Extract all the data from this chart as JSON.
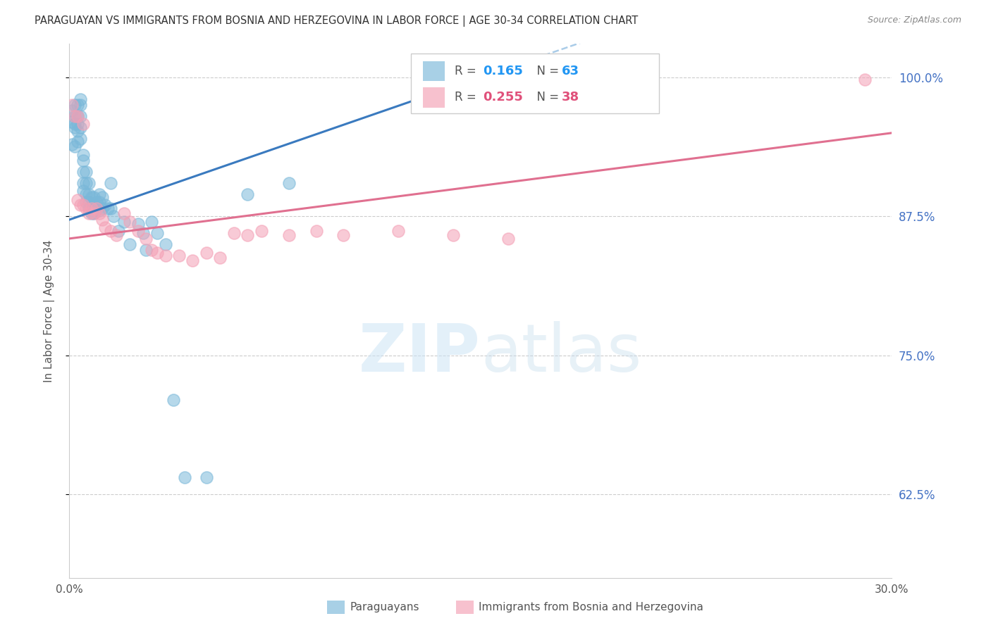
{
  "title": "PARAGUAYAN VS IMMIGRANTS FROM BOSNIA AND HERZEGOVINA IN LABOR FORCE | AGE 30-34 CORRELATION CHART",
  "source": "Source: ZipAtlas.com",
  "ylabel": "In Labor Force | Age 30-34",
  "x_min": 0.0,
  "x_max": 0.3,
  "y_min": 0.55,
  "y_max": 1.03,
  "yticks": [
    0.625,
    0.75,
    0.875,
    1.0
  ],
  "ytick_labels": [
    "62.5%",
    "75.0%",
    "87.5%",
    "100.0%"
  ],
  "xticks": [
    0.0,
    0.05,
    0.1,
    0.15,
    0.2,
    0.25,
    0.3
  ],
  "xtick_labels": [
    "0.0%",
    "",
    "",
    "",
    "",
    "",
    "30.0%"
  ],
  "legend_r1": "0.165",
  "legend_n1": "63",
  "legend_r2": "0.255",
  "legend_n2": "38",
  "blue_color": "#7ab8d9",
  "pink_color": "#f4a0b5",
  "blue_line_color": "#3a7abf",
  "pink_line_color": "#e07090",
  "blue_dash_color": "#aacce8",
  "para_x": [
    0.001,
    0.001,
    0.001,
    0.002,
    0.002,
    0.002,
    0.002,
    0.002,
    0.003,
    0.003,
    0.003,
    0.003,
    0.003,
    0.004,
    0.004,
    0.004,
    0.004,
    0.004,
    0.005,
    0.005,
    0.005,
    0.005,
    0.005,
    0.006,
    0.006,
    0.006,
    0.006,
    0.007,
    0.007,
    0.007,
    0.007,
    0.008,
    0.008,
    0.008,
    0.009,
    0.009,
    0.009,
    0.01,
    0.01,
    0.011,
    0.011,
    0.011,
    0.012,
    0.012,
    0.013,
    0.014,
    0.015,
    0.015,
    0.016,
    0.018,
    0.02,
    0.022,
    0.025,
    0.027,
    0.028,
    0.03,
    0.032,
    0.035,
    0.038,
    0.042,
    0.05,
    0.065,
    0.08
  ],
  "para_y": [
    0.94,
    0.96,
    0.97,
    0.938,
    0.955,
    0.965,
    0.975,
    0.958,
    0.942,
    0.952,
    0.965,
    0.975,
    0.958,
    0.945,
    0.955,
    0.965,
    0.975,
    0.98,
    0.898,
    0.905,
    0.915,
    0.925,
    0.93,
    0.888,
    0.895,
    0.905,
    0.915,
    0.882,
    0.888,
    0.895,
    0.905,
    0.878,
    0.885,
    0.892,
    0.878,
    0.885,
    0.892,
    0.882,
    0.888,
    0.88,
    0.888,
    0.895,
    0.882,
    0.892,
    0.885,
    0.882,
    0.905,
    0.882,
    0.875,
    0.862,
    0.87,
    0.85,
    0.868,
    0.86,
    0.845,
    0.87,
    0.86,
    0.85,
    0.71,
    0.64,
    0.64,
    0.895,
    0.905
  ],
  "bos_x": [
    0.001,
    0.002,
    0.003,
    0.003,
    0.004,
    0.005,
    0.005,
    0.006,
    0.007,
    0.008,
    0.009,
    0.01,
    0.011,
    0.012,
    0.013,
    0.015,
    0.017,
    0.02,
    0.022,
    0.025,
    0.028,
    0.03,
    0.032,
    0.035,
    0.04,
    0.045,
    0.05,
    0.055,
    0.06,
    0.065,
    0.07,
    0.08,
    0.09,
    0.1,
    0.12,
    0.14,
    0.16,
    0.29
  ],
  "bos_y": [
    0.975,
    0.965,
    0.89,
    0.965,
    0.885,
    0.885,
    0.958,
    0.882,
    0.878,
    0.882,
    0.878,
    0.882,
    0.878,
    0.872,
    0.865,
    0.862,
    0.858,
    0.878,
    0.87,
    0.862,
    0.855,
    0.845,
    0.842,
    0.84,
    0.84,
    0.835,
    0.842,
    0.838,
    0.86,
    0.858,
    0.862,
    0.858,
    0.862,
    0.858,
    0.862,
    0.858,
    0.855,
    0.998
  ]
}
